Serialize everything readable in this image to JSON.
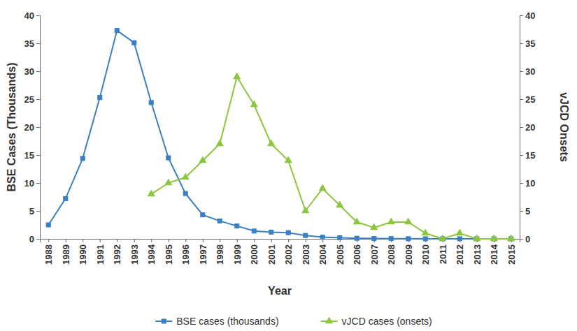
{
  "chart_data": {
    "type": "line",
    "x_label": "Year",
    "y_label": "BSE Cases (Thousands)",
    "y2_label": "vJCD Onsets",
    "categories": [
      "1988",
      "1989",
      "1990",
      "1991",
      "1992",
      "1993",
      "1994",
      "1995",
      "1996",
      "1997",
      "1998",
      "1999",
      "2000",
      "2001",
      "2002",
      "2003",
      "2004",
      "2005",
      "2006",
      "2007",
      "2008",
      "2009",
      "2010",
      "2011",
      "2012",
      "2013",
      "2014",
      "2015"
    ],
    "series": [
      {
        "name": "BSE cases (thousands)",
        "color": "#3b7fc4",
        "marker": "square",
        "line_style": "solid",
        "values": [
          2.5,
          7.2,
          14.4,
          25.3,
          37.3,
          35.1,
          24.4,
          14.5,
          8.1,
          4.3,
          3.2,
          2.3,
          1.4,
          1.2,
          1.1,
          0.6,
          0.3,
          0.2,
          0.1,
          0.05,
          0.04,
          0.02,
          0.01,
          0.01,
          0.01,
          0,
          0,
          0
        ]
      },
      {
        "name": "vJCD cases (onsets)",
        "color": "#8cc63f",
        "marker": "triangle",
        "line_style": "solid",
        "axis": "y2",
        "values": [
          null,
          null,
          null,
          null,
          null,
          null,
          8,
          10,
          11,
          14,
          17,
          29,
          24,
          17,
          14,
          5,
          9,
          6,
          3,
          2,
          3,
          3,
          1,
          0,
          1,
          0,
          0,
          0
        ]
      }
    ],
    "ylim": [
      0,
      40
    ],
    "yticks": [
      0,
      5,
      10,
      15,
      20,
      25,
      30,
      35,
      40
    ],
    "y2lim": [
      0,
      40
    ],
    "y2ticks": [
      0,
      5,
      10,
      15,
      20,
      25,
      30,
      35,
      40
    ],
    "grid": false,
    "legend": "bottom"
  }
}
